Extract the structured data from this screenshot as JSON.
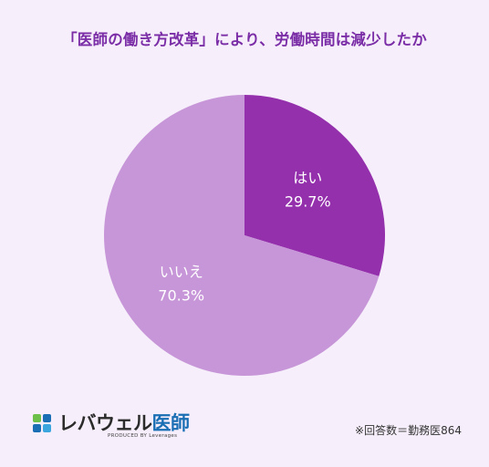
{
  "chart_data": {
    "type": "pie",
    "title": "「医師の働き方改革」により、労働時間は減少したか",
    "slices": [
      {
        "label": "はい",
        "value": 29.7,
        "display": "29.7%",
        "color": "#9530ad"
      },
      {
        "label": "いいえ",
        "value": 70.3,
        "display": "70.3%",
        "color": "#c796d8"
      }
    ],
    "start_angle_deg": 0,
    "direction": "clockwise"
  },
  "footnote": "※回答数＝勤務医864",
  "logo": {
    "name_part1": "レバウェル",
    "name_part2": "医師",
    "subtitle": "PRODUCED BY Leverages"
  },
  "colors": {
    "background": "#f6eefa",
    "title": "#7a2da6"
  }
}
